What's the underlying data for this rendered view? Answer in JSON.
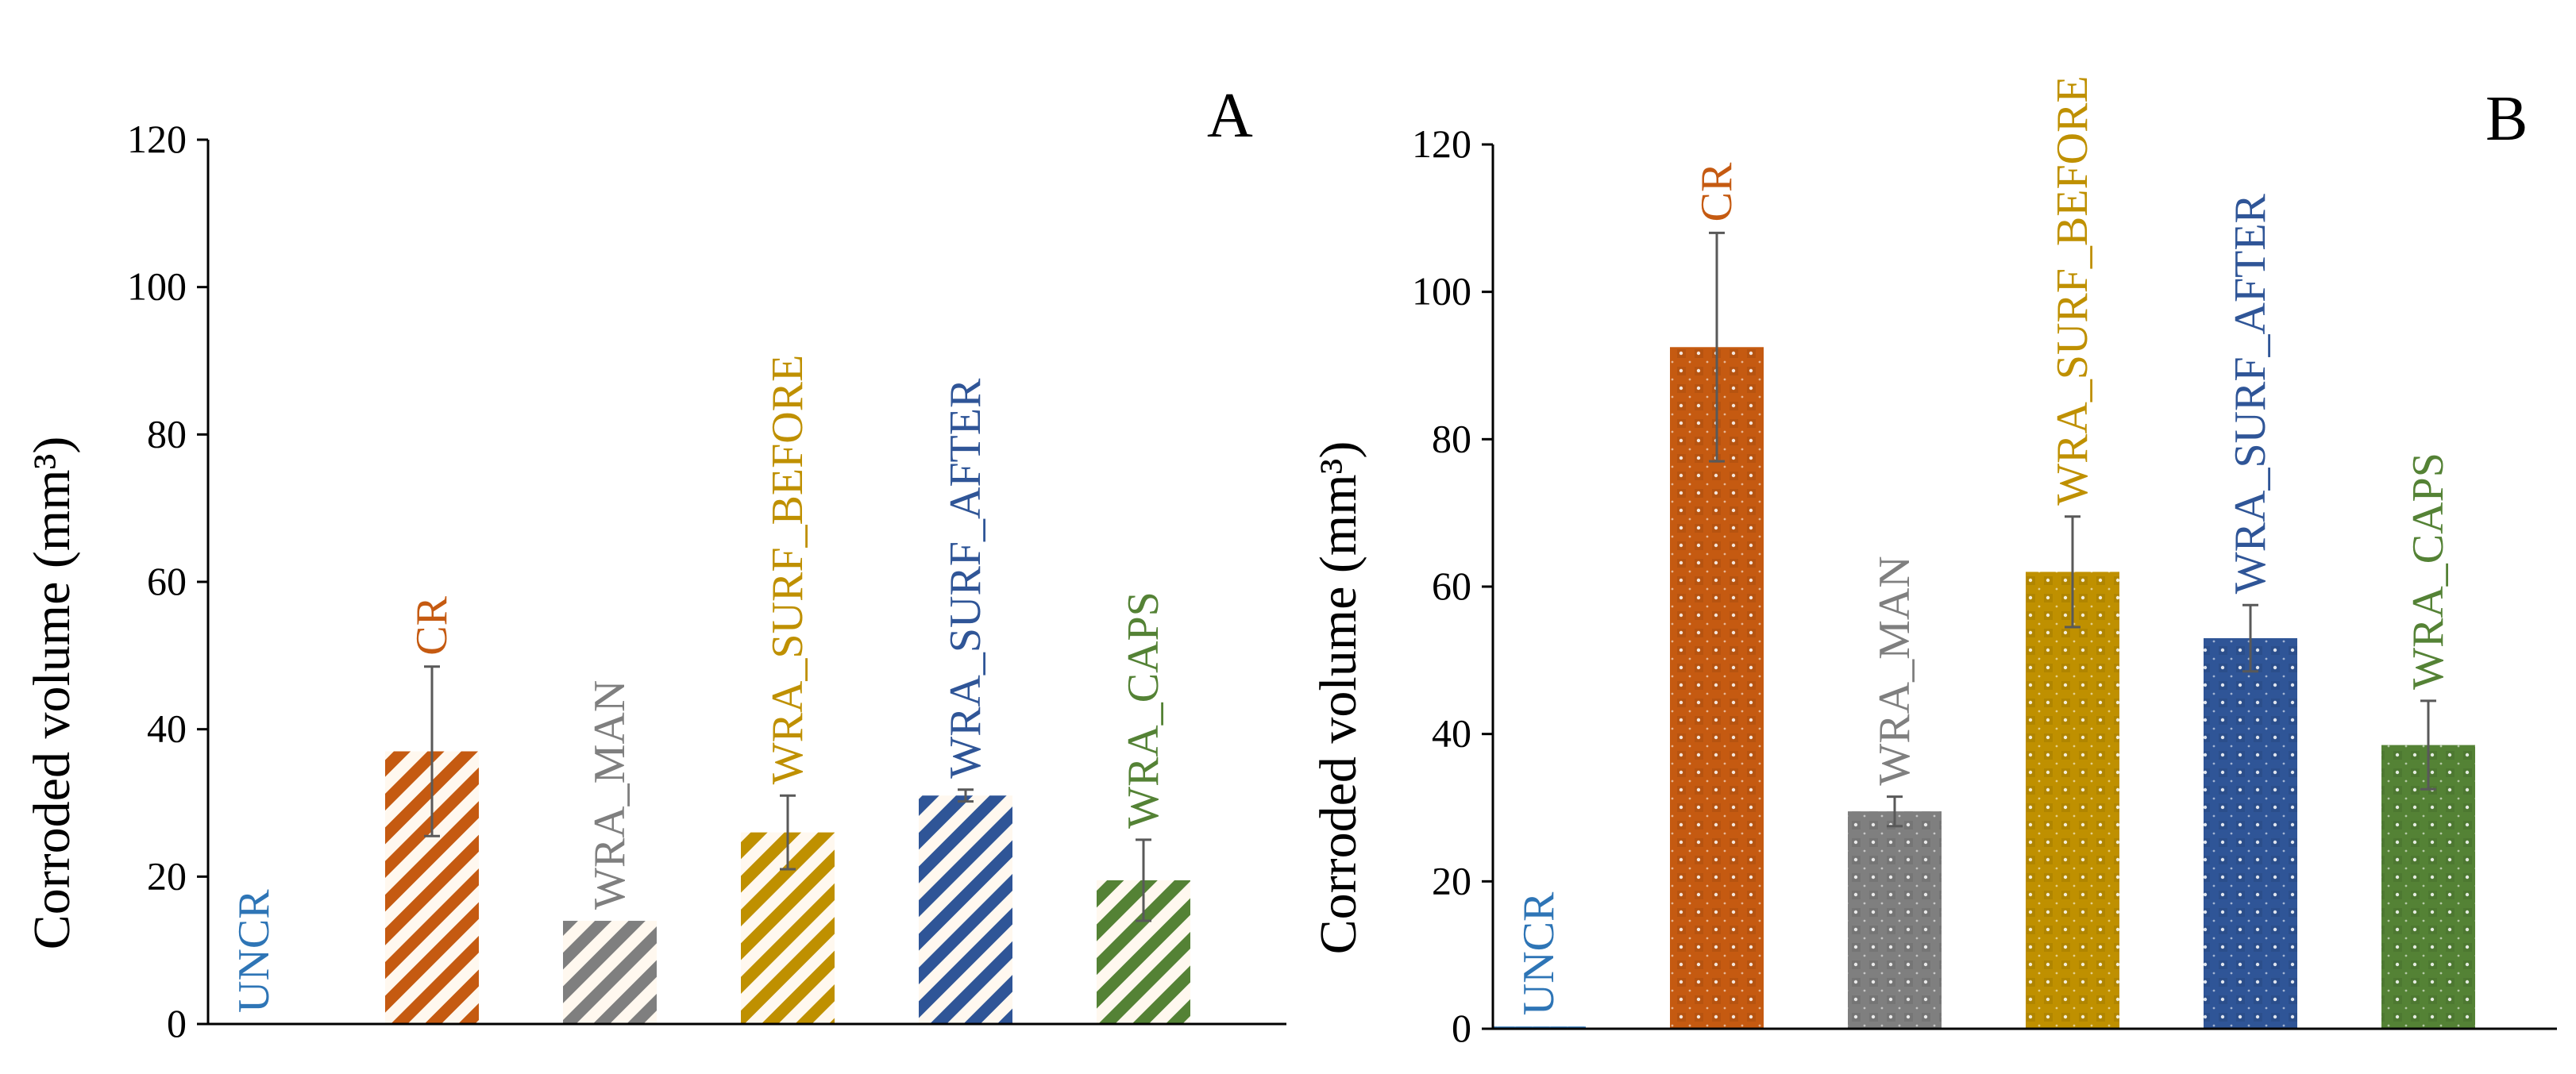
{
  "colors": {
    "UNCR": "#2e75b6",
    "CR": "#c55a11",
    "WRA_MAN": "#7f7f7f",
    "WRA_SURF_BEFORE": "#bf9000",
    "WRA_SURF_AFTER": "#2f5597",
    "WRA_CAPS": "#548235",
    "axis": "#000000",
    "errorbar": "#595959"
  },
  "chart_data": [
    {
      "type": "bar",
      "panel_label": "A",
      "ylabel": "Corroded volume (mm³)",
      "xlabel": "",
      "ylim": [
        0,
        120
      ],
      "yticks": [
        "0",
        "20",
        "40",
        "60",
        "80",
        "100",
        "120"
      ],
      "grid": false,
      "fill_pattern": "diagonal-stripes",
      "categories": [
        "UNCR",
        "CR",
        "WRA_MAN",
        "WRA_SURF_BEFORE",
        "WRA_SURF_AFTER",
        "WRA_CAPS"
      ],
      "values": [
        0,
        37,
        14,
        26,
        31,
        19.5
      ],
      "errors": [
        0,
        11.5,
        0,
        5,
        0.8,
        5.5
      ]
    },
    {
      "type": "bar",
      "panel_label": "B",
      "ylabel": "Corroded volume (mm³)",
      "xlabel": "",
      "ylim": [
        0,
        120
      ],
      "yticks": [
        "0",
        "20",
        "40",
        "60",
        "80",
        "100",
        "120"
      ],
      "grid": false,
      "fill_pattern": "dotted",
      "categories": [
        "UNCR",
        "CR",
        "WRA_MAN",
        "WRA_SURF_BEFORE",
        "WRA_SURF_AFTER",
        "WRA_CAPS"
      ],
      "values": [
        0.3,
        92.5,
        29.5,
        62,
        53,
        38.5
      ],
      "errors": [
        0,
        15.5,
        2,
        7.5,
        4.5,
        6
      ]
    }
  ]
}
